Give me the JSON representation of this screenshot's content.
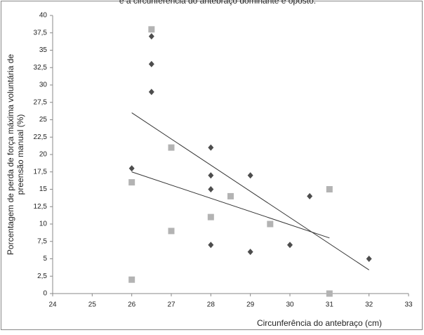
{
  "chart_data": {
    "type": "scatter",
    "title": "e a circunferência do antebraço dominante e oposto.",
    "xlabel": "Circunferência do antebraço (cm)",
    "ylabel": [
      "Porcentagem de perda de força máxima voluntária de",
      "preensão manual (%)"
    ],
    "xlim": [
      24,
      33
    ],
    "xticks": [
      24,
      25,
      26,
      27,
      28,
      29,
      30,
      31,
      32,
      33
    ],
    "ylim": [
      0,
      40
    ],
    "yticks": [
      0,
      {
        "value": 2.5,
        "label": "2,5"
      },
      5,
      {
        "value": 7.5,
        "label": "7,5"
      },
      10,
      {
        "value": 12.5,
        "label": "12,5"
      },
      15,
      {
        "value": 17.5,
        "label": "17,5"
      },
      20,
      {
        "value": 22.5,
        "label": "22,5"
      },
      25,
      {
        "value": 27.5,
        "label": "27,5"
      },
      30,
      {
        "value": 32.5,
        "label": "32,5"
      },
      35,
      {
        "value": 37.5,
        "label": "37,5"
      },
      40
    ],
    "series": [
      {
        "color": "#4d4d4d",
        "marker": "diamond",
        "x": [
          26,
          26.5,
          26.5,
          26.5,
          28,
          28,
          28,
          28,
          29,
          29,
          30,
          30.5,
          32
        ],
        "values": [
          18,
          37,
          33,
          29,
          21,
          17,
          15,
          7,
          17,
          6,
          7,
          14,
          5
        ]
      },
      {
        "color": "#b3b3b3",
        "marker": "square",
        "x": [
          26,
          26,
          26.5,
          27,
          27,
          28,
          28.5,
          29.5,
          31,
          31
        ],
        "values": [
          16,
          2,
          38,
          21,
          9,
          11,
          14,
          10,
          15,
          0
        ]
      }
    ],
    "trendlines": [
      {
        "color": "#333333",
        "x": [
          26,
          32
        ],
        "values": [
          26,
          3.4
        ]
      },
      {
        "color": "#333333",
        "x": [
          26,
          31
        ],
        "values": [
          17.5,
          8
        ]
      }
    ]
  }
}
